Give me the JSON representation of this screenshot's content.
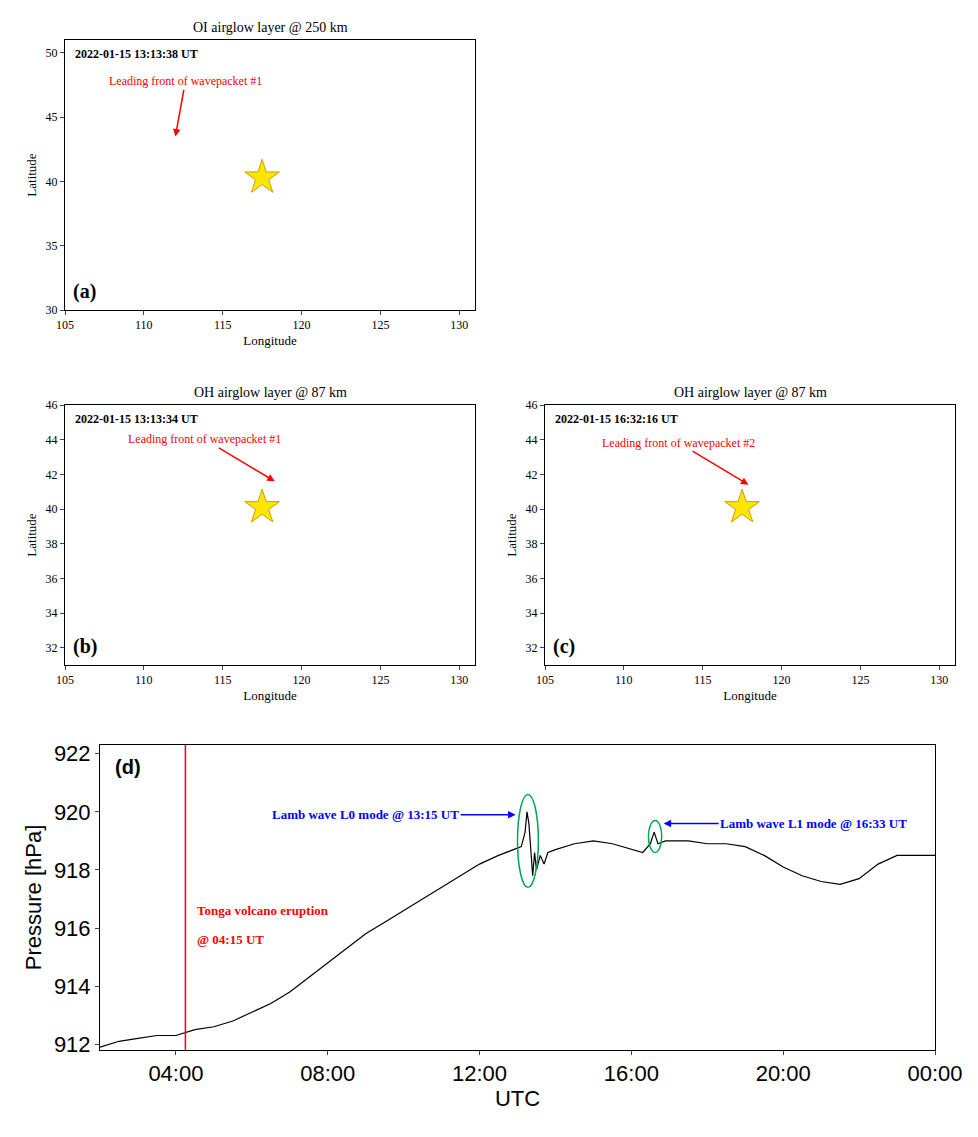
{
  "chart_data": [
    {
      "type": "map",
      "title": "OI airglow layer @ 250 km",
      "panel": "(a)",
      "timestamp": "2022-01-15 13:13:38 UT",
      "xlabel": "Longitude",
      "ylabel": "Latitude",
      "xlim": [
        105,
        131
      ],
      "xticks": [
        105,
        110,
        115,
        120,
        125,
        130
      ],
      "ylim": [
        30,
        51
      ],
      "yticks": [
        30,
        35,
        40,
        45,
        50
      ],
      "x": [
        117.5
      ],
      "y": [
        40.3
      ],
      "marker": "star",
      "color": "#ffe600",
      "callouts": [
        {
          "text": "Leading front of wavepacket #1",
          "x": 112,
          "y": 43.5,
          "color": "#ff0000"
        }
      ]
    },
    {
      "type": "map",
      "title": "OH airglow layer @ 87 km",
      "panel": "(b)",
      "timestamp": "2022-01-15 13:13:34 UT",
      "xlabel": "Longitude",
      "ylabel": "Latitude",
      "xlim": [
        105,
        131
      ],
      "xticks": [
        105,
        110,
        115,
        120,
        125,
        130
      ],
      "ylim": [
        31,
        46
      ],
      "yticks": [
        32,
        34,
        36,
        38,
        40,
        42,
        44,
        46
      ],
      "x": [
        117.5
      ],
      "y": [
        40.1
      ],
      "marker": "star",
      "color": "#ffe600",
      "callouts": [
        {
          "text": "Leading front of wavepacket #1",
          "x": 118.3,
          "y": 41.6,
          "color": "#ff0000"
        }
      ]
    },
    {
      "type": "map",
      "title": "OH airglow layer @ 87 km",
      "panel": "(c)",
      "timestamp": "2022-01-15 16:32:16 UT",
      "xlabel": "Longitude",
      "ylabel": "Latitude",
      "xlim": [
        105,
        131
      ],
      "xticks": [
        105,
        110,
        115,
        120,
        125,
        130
      ],
      "ylim": [
        31,
        46
      ],
      "yticks": [
        32,
        34,
        36,
        38,
        40,
        42,
        44,
        46
      ],
      "x": [
        117.5
      ],
      "y": [
        40.1
      ],
      "marker": "star",
      "color": "#ffe600",
      "callouts": [
        {
          "text": "Leading front of wavepacket #2",
          "x": 117.9,
          "y": 41.4,
          "color": "#ff0000"
        }
      ]
    },
    {
      "type": "line",
      "panel": "(d)",
      "xlabel": "UTC",
      "ylabel": "Pressure [hPa]",
      "xlim": [
        2,
        24
      ],
      "xticks": [
        {
          "value": 4,
          "label": "04:00"
        },
        {
          "value": 8,
          "label": "08:00"
        },
        {
          "value": 12,
          "label": "12:00"
        },
        {
          "value": 16,
          "label": "16:00"
        },
        {
          "value": 20,
          "label": "20:00"
        },
        {
          "value": 24,
          "label": "00:00"
        }
      ],
      "ylim": [
        911.8,
        922.3
      ],
      "yticks": [
        912,
        914,
        916,
        918,
        920,
        922
      ],
      "color": "#000000",
      "x": [
        2.0,
        2.5,
        3.0,
        3.5,
        4.0,
        4.25,
        4.5,
        5.0,
        5.5,
        6.0,
        6.5,
        7.0,
        7.5,
        8.0,
        8.5,
        9.0,
        9.5,
        10.0,
        10.5,
        11.0,
        11.5,
        12.0,
        12.5,
        12.9,
        13.1,
        13.2,
        13.25,
        13.3,
        13.35,
        13.4,
        13.45,
        13.5,
        13.6,
        13.7,
        13.8,
        14.0,
        14.5,
        15.0,
        15.5,
        16.0,
        16.3,
        16.5,
        16.6,
        16.7,
        16.9,
        17.5,
        18.0,
        18.5,
        19.0,
        19.5,
        20.0,
        20.5,
        21.0,
        21.5,
        22.0,
        22.5,
        23.0,
        23.5,
        24.0
      ],
      "values": [
        911.9,
        912.1,
        912.2,
        912.3,
        912.3,
        912.4,
        912.5,
        912.6,
        912.8,
        913.1,
        913.4,
        913.8,
        914.3,
        914.8,
        915.3,
        915.8,
        916.2,
        916.6,
        917.0,
        917.4,
        917.8,
        918.2,
        918.5,
        918.7,
        918.8,
        919.3,
        920.0,
        919.6,
        918.5,
        917.8,
        918.6,
        918.0,
        918.5,
        918.2,
        918.6,
        918.7,
        918.9,
        919.0,
        918.9,
        918.7,
        918.6,
        918.9,
        919.3,
        918.9,
        919.0,
        919.0,
        918.9,
        918.9,
        918.8,
        918.5,
        918.1,
        917.8,
        917.6,
        917.5,
        917.7,
        918.2,
        918.5,
        918.5,
        918.5
      ],
      "vlines": [
        {
          "x": 4.25,
          "color": "#ff0000"
        }
      ],
      "notes": [
        {
          "text": "Tonga volcano eruption",
          "x": 4.5,
          "y": 916.6,
          "color": "#ff0000"
        },
        {
          "text": "@ 04:15 UT",
          "x": 4.5,
          "y": 915.6,
          "color": "#ff0000"
        }
      ],
      "callouts": [
        {
          "text": "Lamb wave L0 mode @ 13:15 UT",
          "x": 12.95,
          "y": 919.9,
          "color": "#0000ff"
        },
        {
          "text": "Lamb wave L1 mode @ 16:33 UT",
          "x": 16.85,
          "y": 919.6,
          "color": "#0000ff"
        }
      ],
      "highlights": [
        {
          "x": [
            13.0,
            13.55
          ],
          "y": [
            917.4,
            920.6
          ],
          "color": "#00a651"
        },
        {
          "x": [
            16.45,
            16.8
          ],
          "y": [
            918.6,
            919.7
          ],
          "color": "#00a651"
        }
      ]
    }
  ]
}
